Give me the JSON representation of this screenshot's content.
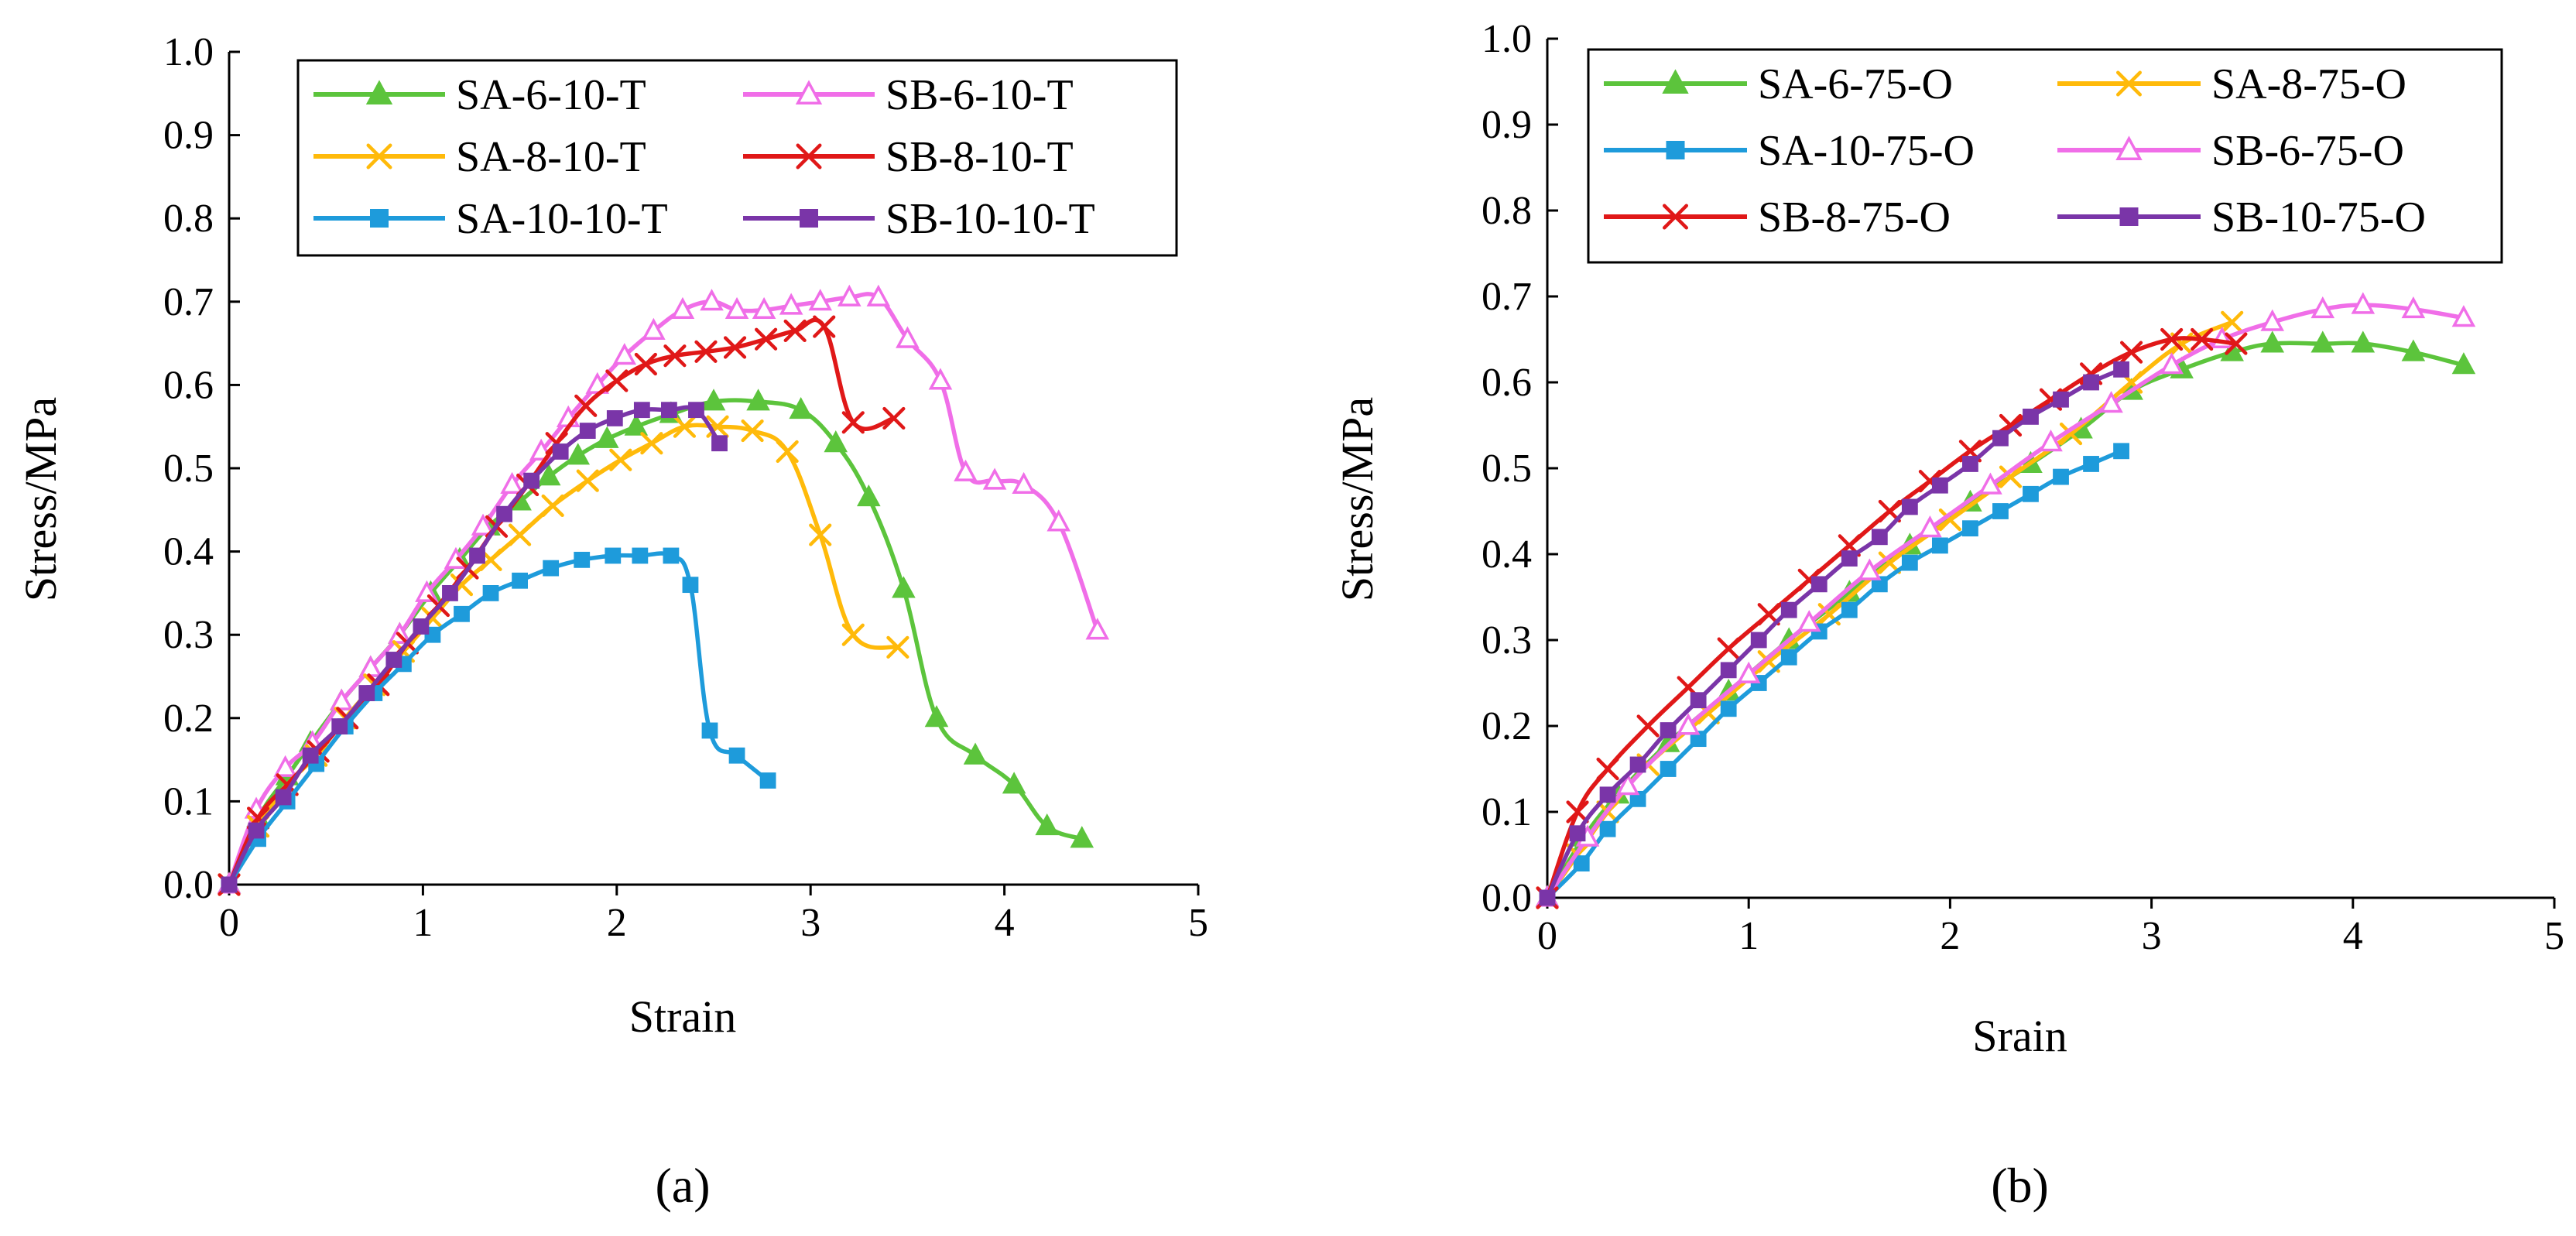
{
  "chart_data": [
    {
      "type": "line",
      "panel_label": "(a)",
      "xlabel": "Strain",
      "ylabel": "Stress/MPa",
      "xlim": [
        0,
        5
      ],
      "ylim": [
        0,
        1.0
      ],
      "xticks": [
        "0",
        "1",
        "2",
        "3",
        "4",
        "5"
      ],
      "yticks": [
        "0.0",
        "0.1",
        "0.2",
        "0.3",
        "0.4",
        "0.5",
        "0.6",
        "0.7",
        "0.8",
        "0.9",
        "1.0"
      ],
      "grid": false,
      "legend_position": "top-right",
      "series": [
        {
          "name": "SA-6-10-T",
          "color": "#5CC43C",
          "marker": "triangle-filled",
          "x": [
            0,
            0.15,
            0.3,
            0.42,
            0.58,
            0.73,
            0.88,
            1.04,
            1.19,
            1.34,
            1.5,
            1.65,
            1.8,
            1.95,
            2.1,
            2.28,
            2.5,
            2.73,
            2.95,
            3.13,
            3.3,
            3.48,
            3.65,
            3.85,
            4.05,
            4.22,
            4.4
          ],
          "y": [
            0,
            0.08,
            0.13,
            0.17,
            0.22,
            0.26,
            0.3,
            0.35,
            0.39,
            0.43,
            0.46,
            0.49,
            0.515,
            0.535,
            0.55,
            0.565,
            0.58,
            0.58,
            0.57,
            0.53,
            0.465,
            0.355,
            0.2,
            0.155,
            0.12,
            0.07,
            0.055
          ]
        },
        {
          "name": "SB-6-10-T",
          "color": "#F06EE8",
          "marker": "triangle-open",
          "x": [
            0,
            0.14,
            0.29,
            0.43,
            0.58,
            0.73,
            0.88,
            1.02,
            1.17,
            1.31,
            1.46,
            1.61,
            1.75,
            1.9,
            2.04,
            2.19,
            2.34,
            2.49,
            2.62,
            2.76,
            2.9,
            3.05,
            3.2,
            3.35,
            3.5,
            3.67,
            3.8,
            3.95,
            4.1,
            4.28,
            4.48
          ],
          "y": [
            0,
            0.09,
            0.14,
            0.17,
            0.22,
            0.26,
            0.3,
            0.35,
            0.39,
            0.43,
            0.48,
            0.52,
            0.56,
            0.6,
            0.635,
            0.665,
            0.69,
            0.7,
            0.69,
            0.69,
            0.695,
            0.7,
            0.705,
            0.705,
            0.655,
            0.605,
            0.495,
            0.485,
            0.48,
            0.435,
            0.305
          ]
        },
        {
          "name": "SA-8-10-T",
          "color": "#FFBA0A",
          "marker": "x",
          "x": [
            0,
            0.15,
            0.3,
            0.45,
            0.6,
            0.75,
            0.9,
            1.05,
            1.2,
            1.35,
            1.5,
            1.67,
            1.85,
            2.02,
            2.18,
            2.35,
            2.52,
            2.7,
            2.88,
            3.05,
            3.22,
            3.45
          ],
          "y": [
            0,
            0.07,
            0.12,
            0.155,
            0.2,
            0.24,
            0.28,
            0.32,
            0.36,
            0.39,
            0.42,
            0.455,
            0.485,
            0.51,
            0.53,
            0.55,
            0.55,
            0.545,
            0.52,
            0.42,
            0.3,
            0.285
          ]
        },
        {
          "name": "SB-8-10-T",
          "color": "#E01818",
          "marker": "x",
          "x": [
            0,
            0.15,
            0.3,
            0.46,
            0.61,
            0.77,
            0.92,
            1.08,
            1.23,
            1.38,
            1.54,
            1.69,
            1.84,
            2.0,
            2.15,
            2.3,
            2.46,
            2.61,
            2.77,
            2.92,
            3.07,
            3.22,
            3.43
          ],
          "y": [
            0,
            0.08,
            0.12,
            0.16,
            0.2,
            0.24,
            0.29,
            0.335,
            0.38,
            0.43,
            0.48,
            0.53,
            0.575,
            0.605,
            0.625,
            0.635,
            0.64,
            0.645,
            0.655,
            0.665,
            0.67,
            0.555,
            0.56
          ]
        },
        {
          "name": "SA-10-10-T",
          "color": "#1E9BDB",
          "marker": "square-filled",
          "x": [
            0,
            0.15,
            0.3,
            0.45,
            0.6,
            0.75,
            0.9,
            1.05,
            1.2,
            1.35,
            1.5,
            1.66,
            1.82,
            1.98,
            2.12,
            2.28,
            2.38,
            2.48,
            2.62,
            2.78
          ],
          "y": [
            0,
            0.055,
            0.1,
            0.145,
            0.19,
            0.23,
            0.265,
            0.3,
            0.325,
            0.35,
            0.365,
            0.38,
            0.39,
            0.395,
            0.395,
            0.395,
            0.36,
            0.185,
            0.155,
            0.125
          ]
        },
        {
          "name": "SB-10-10-T",
          "color": "#7A35A8",
          "marker": "square-filled",
          "x": [
            0,
            0.14,
            0.28,
            0.42,
            0.57,
            0.71,
            0.85,
            0.99,
            1.14,
            1.28,
            1.42,
            1.56,
            1.71,
            1.85,
            1.99,
            2.13,
            2.27,
            2.41,
            2.53
          ],
          "y": [
            0,
            0.065,
            0.105,
            0.155,
            0.19,
            0.23,
            0.27,
            0.31,
            0.35,
            0.395,
            0.445,
            0.485,
            0.52,
            0.545,
            0.56,
            0.57,
            0.57,
            0.57,
            0.53
          ]
        }
      ]
    },
    {
      "type": "line",
      "panel_label": "(b)",
      "xlabel": "Srain",
      "ylabel": "Stress/MPa",
      "xlim": [
        0,
        5
      ],
      "ylim": [
        0,
        1.0
      ],
      "xticks": [
        "0",
        "1",
        "2",
        "3",
        "4",
        "5"
      ],
      "yticks": [
        "0.0",
        "0.1",
        "0.2",
        "0.3",
        "0.4",
        "0.5",
        "0.6",
        "0.7",
        "0.8",
        "0.9",
        "1.0"
      ],
      "grid": false,
      "legend_position": "top",
      "series": [
        {
          "name": "SA-6-75-O",
          "color": "#5CC43C",
          "marker": "triangle-filled",
          "x": [
            0,
            0.18,
            0.35,
            0.6,
            0.9,
            1.2,
            1.5,
            1.8,
            2.1,
            2.4,
            2.65,
            2.9,
            3.15,
            3.4,
            3.6,
            3.85,
            4.05,
            4.3,
            4.55
          ],
          "y": [
            0,
            0.07,
            0.12,
            0.18,
            0.24,
            0.3,
            0.355,
            0.41,
            0.46,
            0.505,
            0.545,
            0.59,
            0.615,
            0.635,
            0.645,
            0.645,
            0.645,
            0.635,
            0.62
          ]
        },
        {
          "name": "SA-8-75-O",
          "color": "#FFBA0A",
          "marker": "x",
          "x": [
            0,
            0.15,
            0.3,
            0.5,
            0.8,
            1.1,
            1.4,
            1.7,
            2.0,
            2.3,
            2.6,
            2.9,
            3.15,
            3.4
          ],
          "y": [
            0,
            0.05,
            0.1,
            0.155,
            0.215,
            0.275,
            0.33,
            0.39,
            0.44,
            0.49,
            0.54,
            0.6,
            0.645,
            0.67
          ]
        },
        {
          "name": "SA-10-75-O",
          "color": "#1E9BDB",
          "marker": "square-filled",
          "x": [
            0,
            0.17,
            0.3,
            0.45,
            0.6,
            0.75,
            0.9,
            1.05,
            1.2,
            1.35,
            1.5,
            1.65,
            1.8,
            1.95,
            2.1,
            2.25,
            2.4,
            2.55,
            2.7,
            2.85
          ],
          "y": [
            0,
            0.04,
            0.08,
            0.115,
            0.15,
            0.185,
            0.22,
            0.25,
            0.28,
            0.31,
            0.335,
            0.365,
            0.39,
            0.41,
            0.43,
            0.45,
            0.47,
            0.49,
            0.505,
            0.52
          ]
        },
        {
          "name": "SB-6-75-O",
          "color": "#F06EE8",
          "marker": "triangle-open",
          "x": [
            0,
            0.2,
            0.4,
            0.7,
            1.0,
            1.3,
            1.6,
            1.9,
            2.2,
            2.5,
            2.8,
            3.1,
            3.35,
            3.6,
            3.85,
            4.05,
            4.3,
            4.55
          ],
          "y": [
            0,
            0.07,
            0.13,
            0.2,
            0.26,
            0.32,
            0.38,
            0.43,
            0.48,
            0.53,
            0.575,
            0.62,
            0.65,
            0.67,
            0.685,
            0.69,
            0.685,
            0.675
          ]
        },
        {
          "name": "SB-8-75-O",
          "color": "#E01818",
          "marker": "x",
          "x": [
            0,
            0.15,
            0.3,
            0.5,
            0.7,
            0.9,
            1.1,
            1.3,
            1.5,
            1.7,
            1.9,
            2.1,
            2.3,
            2.5,
            2.7,
            2.9,
            3.1,
            3.25,
            3.42
          ],
          "y": [
            0,
            0.1,
            0.15,
            0.2,
            0.245,
            0.29,
            0.33,
            0.37,
            0.41,
            0.45,
            0.485,
            0.52,
            0.55,
            0.58,
            0.61,
            0.635,
            0.65,
            0.65,
            0.645
          ]
        },
        {
          "name": "SB-10-75-O",
          "color": "#7A35A8",
          "marker": "square-filled",
          "x": [
            0,
            0.15,
            0.3,
            0.45,
            0.6,
            0.75,
            0.9,
            1.05,
            1.2,
            1.35,
            1.5,
            1.65,
            1.8,
            1.95,
            2.1,
            2.25,
            2.4,
            2.55,
            2.7,
            2.85
          ],
          "y": [
            0,
            0.075,
            0.12,
            0.155,
            0.195,
            0.23,
            0.265,
            0.3,
            0.335,
            0.365,
            0.395,
            0.42,
            0.455,
            0.48,
            0.505,
            0.535,
            0.56,
            0.58,
            0.6,
            0.615
          ]
        }
      ]
    }
  ]
}
